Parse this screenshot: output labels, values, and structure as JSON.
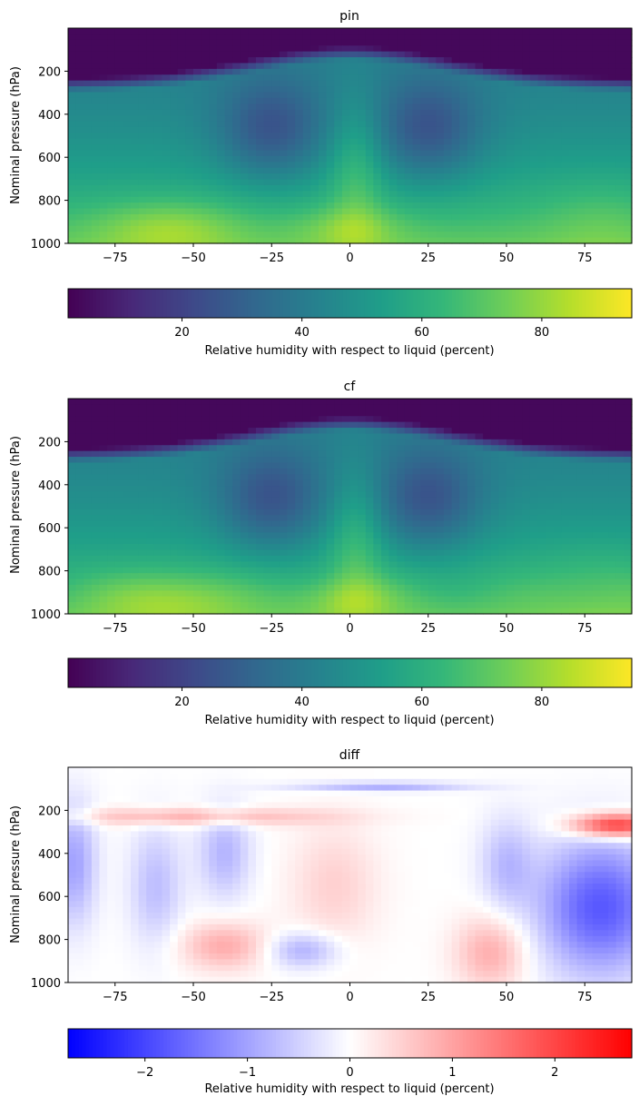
{
  "chart_data": [
    {
      "type": "heatmap",
      "title": "pin",
      "ylabel": "Nominal pressure (hPa)",
      "xlabel": "",
      "xlim": [
        -90,
        90
      ],
      "ylim": [
        1000,
        0
      ],
      "xticks": [
        -75,
        -50,
        -25,
        0,
        25,
        50,
        75
      ],
      "xtick_labels": [
        "−75",
        "−50",
        "−25",
        "0",
        "25",
        "50",
        "75"
      ],
      "yticks": [
        200,
        400,
        600,
        800,
        1000
      ],
      "ytick_labels": [
        "200",
        "400",
        "600",
        "800",
        "1000"
      ],
      "colormap": "viridis",
      "colorbar": {
        "label": "Relative humidity with respect to liquid (percent)",
        "range": [
          1,
          95
        ],
        "ticks": [
          20,
          40,
          60,
          80
        ],
        "tick_labels": [
          "20",
          "40",
          "60",
          "80"
        ]
      }
    },
    {
      "type": "heatmap",
      "title": "cf",
      "ylabel": "Nominal pressure (hPa)",
      "xlabel": "",
      "xlim": [
        -90,
        90
      ],
      "ylim": [
        1000,
        0
      ],
      "xticks": [
        -75,
        -50,
        -25,
        0,
        25,
        50,
        75
      ],
      "xtick_labels": [
        "−75",
        "−50",
        "−25",
        "0",
        "25",
        "50",
        "75"
      ],
      "yticks": [
        200,
        400,
        600,
        800,
        1000
      ],
      "ytick_labels": [
        "200",
        "400",
        "600",
        "800",
        "1000"
      ],
      "colormap": "viridis",
      "colorbar": {
        "label": "Relative humidity with respect to liquid (percent)",
        "range": [
          1,
          95
        ],
        "ticks": [
          20,
          40,
          60,
          80
        ],
        "tick_labels": [
          "20",
          "40",
          "60",
          "80"
        ]
      }
    },
    {
      "type": "heatmap",
      "title": "diff",
      "ylabel": "Nominal pressure (hPa)",
      "xlabel": "",
      "xlim": [
        -90,
        90
      ],
      "ylim": [
        1000,
        0
      ],
      "xticks": [
        -75,
        -50,
        -25,
        0,
        25,
        50,
        75
      ],
      "xtick_labels": [
        "−75",
        "−50",
        "−25",
        "0",
        "25",
        "50",
        "75"
      ],
      "yticks": [
        200,
        400,
        600,
        800,
        1000
      ],
      "ytick_labels": [
        "200",
        "400",
        "600",
        "800",
        "1000"
      ],
      "colormap": "bwr",
      "colorbar": {
        "label": "Relative humidity with respect to liquid (percent)",
        "range": [
          -2.75,
          2.75
        ],
        "ticks": [
          -2,
          -1,
          0,
          1,
          2
        ],
        "tick_labels": [
          "−2",
          "−1",
          "0",
          "1",
          "2"
        ]
      }
    }
  ]
}
